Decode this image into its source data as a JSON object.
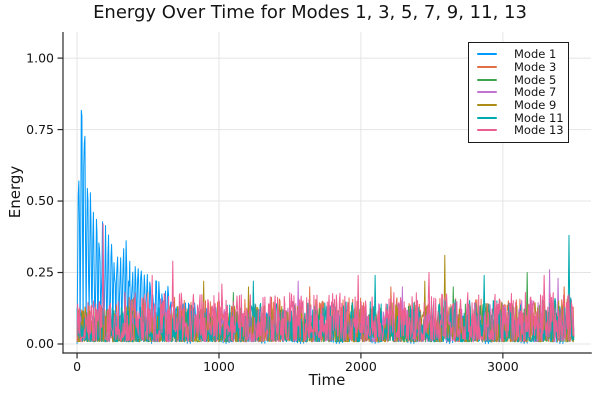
{
  "chart_data": {
    "type": "line",
    "title": "Energy Over Time for Modes 1, 3, 5, 7, 9, 11, 13",
    "xlabel": "Time",
    "ylabel": "Energy",
    "xlim": [
      -99,
      3621
    ],
    "ylim": [
      -0.0315,
      1.0913
    ],
    "xticks": [
      0,
      1000,
      2000,
      3000
    ],
    "xtick_labels": [
      "0",
      "1000",
      "2000",
      "3000"
    ],
    "yticks": [
      0,
      0.25,
      0.5,
      0.75,
      1.0
    ],
    "ytick_labels": [
      "0.00",
      "0.25",
      "0.50",
      "0.75",
      "1.00"
    ],
    "grid": true,
    "grid_color": "#E4E4E4",
    "axis_color": "#2A2A2A",
    "background": "#FFFFFF",
    "legend_position": "top-right",
    "t_start": 0,
    "t_end": 3500,
    "samples_per_series": 820,
    "series": [
      {
        "name": "Mode 1",
        "color": "#009AFA",
        "kind": "oscillation",
        "period": 21,
        "seed": 11,
        "base": 0.002,
        "power": 1.0,
        "envelope": [
          [
            0,
            0.5
          ],
          [
            30,
            1.07
          ],
          [
            55,
            0.95
          ],
          [
            85,
            0.72
          ],
          [
            110,
            0.52
          ],
          [
            160,
            0.47
          ],
          [
            230,
            0.44
          ],
          [
            300,
            0.4
          ],
          [
            380,
            0.36
          ],
          [
            460,
            0.3
          ],
          [
            550,
            0.25
          ],
          [
            640,
            0.21
          ],
          [
            750,
            0.17
          ],
          [
            900,
            0.14
          ],
          [
            1100,
            0.12
          ],
          [
            3500,
            0.1
          ]
        ],
        "spikes": []
      },
      {
        "name": "Mode 3",
        "color": "#E36F47",
        "kind": "noise",
        "seed": 23,
        "base": 0.008,
        "power": 2.1,
        "envelope": [
          [
            0,
            0.12
          ],
          [
            400,
            0.16
          ],
          [
            3500,
            0.15
          ]
        ],
        "spikes": [
          [
            500,
            0.18
          ],
          [
            1640,
            0.2
          ],
          [
            2210,
            0.2
          ],
          [
            3430,
            0.2
          ]
        ]
      },
      {
        "name": "Mode 5",
        "color": "#3DA44E",
        "kind": "noise",
        "seed": 37,
        "base": 0.008,
        "power": 2.3,
        "envelope": [
          [
            0,
            0.11
          ],
          [
            3500,
            0.14
          ]
        ],
        "spikes": [
          [
            1100,
            0.18
          ],
          [
            2650,
            0.2
          ],
          [
            3170,
            0.25
          ]
        ]
      },
      {
        "name": "Mode 7",
        "color": "#C371D2",
        "kind": "noise",
        "seed": 41,
        "base": 0.008,
        "power": 2.3,
        "envelope": [
          [
            0,
            0.11
          ],
          [
            3500,
            0.15
          ]
        ],
        "spikes": [
          [
            1560,
            0.22
          ],
          [
            2290,
            0.2
          ],
          [
            3330,
            0.26
          ],
          [
            3390,
            0.23
          ]
        ]
      },
      {
        "name": "Mode 9",
        "color": "#AC8E17",
        "kind": "noise",
        "seed": 53,
        "base": 0.008,
        "power": 2.2,
        "envelope": [
          [
            0,
            0.12
          ],
          [
            3500,
            0.15
          ]
        ],
        "spikes": [
          [
            890,
            0.22
          ],
          [
            1210,
            0.2
          ],
          [
            2450,
            0.22
          ],
          [
            2590,
            0.31
          ]
        ]
      },
      {
        "name": "Mode 11",
        "color": "#00AAAE",
        "kind": "noise",
        "seed": 67,
        "base": 0.008,
        "power": 2.0,
        "envelope": [
          [
            0,
            0.12
          ],
          [
            3500,
            0.16
          ]
        ],
        "spikes": [
          [
            1240,
            0.22
          ],
          [
            2100,
            0.24
          ],
          [
            2870,
            0.24
          ],
          [
            3465,
            0.38
          ]
        ]
      },
      {
        "name": "Mode 13",
        "color": "#ED5E93",
        "kind": "noise",
        "seed": 79,
        "base": 0.01,
        "power": 1.7,
        "envelope": [
          [
            0,
            0.13
          ],
          [
            300,
            0.17
          ],
          [
            3500,
            0.17
          ]
        ],
        "spikes": [
          [
            183,
            0.42
          ],
          [
            528,
            0.24
          ],
          [
            675,
            0.29
          ],
          [
            1020,
            0.21
          ],
          [
            1980,
            0.24
          ],
          [
            2480,
            0.25
          ],
          [
            3290,
            0.24
          ]
        ]
      }
    ]
  }
}
